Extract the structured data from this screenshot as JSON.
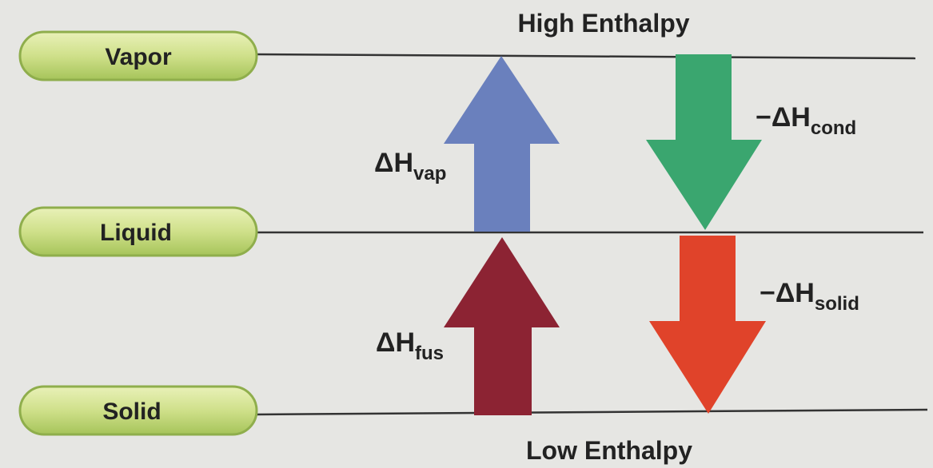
{
  "header": {
    "top": "High Enthalpy",
    "bottom": "Low Enthalpy"
  },
  "states": [
    "Vapor",
    "Liquid",
    "Solid"
  ],
  "arrows": [
    {
      "symbol": "ΔH",
      "subscript": "vap"
    },
    {
      "symbol": "−ΔH",
      "subscript": "cond"
    },
    {
      "symbol": "ΔH",
      "subscript": "fus"
    },
    {
      "symbol": "−ΔH",
      "subscript": "solid"
    }
  ]
}
